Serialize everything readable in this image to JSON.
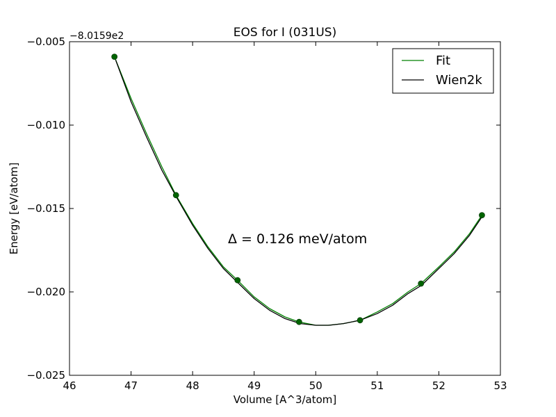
{
  "chart_data": {
    "type": "line",
    "title": "EOS for I (031US)",
    "xlabel": "Volume [A^3/atom]",
    "ylabel": "Energy [eV/atom]",
    "offset_label": "−8.0159e2",
    "annotation": "Δ = 0.126 meV/atom",
    "xlim": [
      46,
      53
    ],
    "ylim": [
      -0.025,
      -0.005
    ],
    "x_ticks": [
      46,
      47,
      48,
      49,
      50,
      51,
      52,
      53
    ],
    "x_tick_labels": [
      "46",
      "47",
      "48",
      "49",
      "50",
      "51",
      "52",
      "53"
    ],
    "y_ticks": [
      -0.025,
      -0.02,
      -0.015,
      -0.01,
      -0.005
    ],
    "y_tick_labels": [
      "−0.025",
      "−0.020",
      "−0.015",
      "−0.010",
      "−0.005"
    ],
    "grid": false,
    "legend_position": "top-right",
    "points": {
      "x": [
        46.73,
        47.73,
        48.73,
        49.73,
        50.72,
        51.71,
        52.7
      ],
      "y": [
        -0.0059,
        -0.0142,
        -0.0193,
        -0.0218,
        -0.0217,
        -0.0195,
        -0.0154
      ],
      "color": "#006400"
    },
    "series": [
      {
        "name": "Fit",
        "color": "#008000",
        "x": [
          46.73,
          47.0,
          47.25,
          47.5,
          47.73,
          48.0,
          48.25,
          48.5,
          48.73,
          49.0,
          49.25,
          49.5,
          49.73,
          50.0,
          50.2,
          50.45,
          50.72,
          51.0,
          51.25,
          51.5,
          51.71,
          52.0,
          52.25,
          52.5,
          52.7
        ],
        "y": [
          -0.0059,
          -0.0084,
          -0.0105,
          -0.0125,
          -0.0142,
          -0.0159,
          -0.0173,
          -0.0185,
          -0.0193,
          -0.0203,
          -0.021,
          -0.0215,
          -0.0218,
          -0.022,
          -0.022,
          -0.0219,
          -0.0217,
          -0.0212,
          -0.0207,
          -0.02,
          -0.0195,
          -0.0185,
          -0.0176,
          -0.0165,
          -0.0154
        ]
      },
      {
        "name": "Wien2k",
        "color": "#000000",
        "x": [
          46.75,
          47.0,
          47.25,
          47.5,
          47.75,
          48.0,
          48.25,
          48.5,
          48.75,
          49.0,
          49.25,
          49.5,
          49.75,
          50.0,
          50.22,
          50.45,
          50.72,
          51.0,
          51.25,
          51.5,
          51.72,
          52.0,
          52.25,
          52.5,
          52.7
        ],
        "y": [
          -0.0061,
          -0.0086,
          -0.0107,
          -0.0127,
          -0.0144,
          -0.016,
          -0.0174,
          -0.0186,
          -0.0195,
          -0.0204,
          -0.0211,
          -0.0216,
          -0.0219,
          -0.022,
          -0.022,
          -0.0219,
          -0.0217,
          -0.0213,
          -0.0208,
          -0.0201,
          -0.0196,
          -0.0186,
          -0.0177,
          -0.0166,
          -0.0155
        ]
      }
    ]
  }
}
